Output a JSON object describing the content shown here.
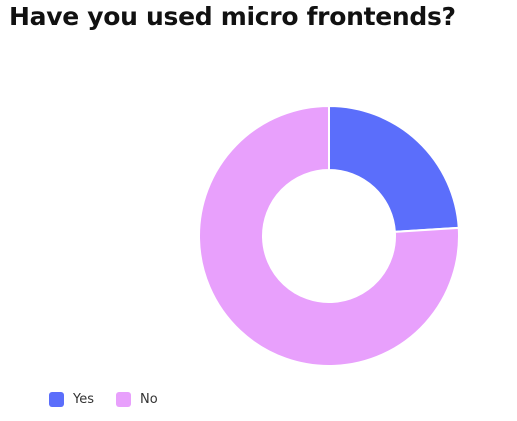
{
  "chart_data": {
    "type": "pie",
    "variant": "donut",
    "title": "Have you used micro frontends?",
    "categories": [
      "Yes",
      "No"
    ],
    "values": [
      24,
      76
    ],
    "unit": "percent",
    "colors": [
      "#5B6EFB",
      "#E8A0FC"
    ],
    "legend": {
      "position": "bottom-left",
      "items": [
        {
          "label": "Yes",
          "color": "#5B6EFB"
        },
        {
          "label": "No",
          "color": "#E8A0FC"
        }
      ]
    }
  }
}
